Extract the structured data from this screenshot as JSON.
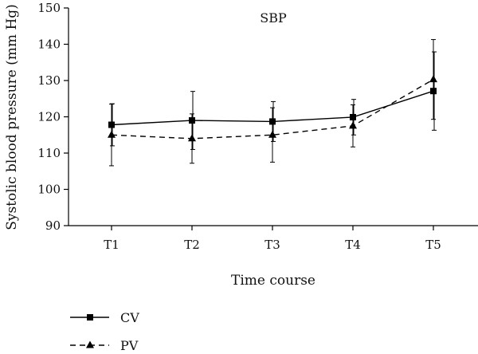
{
  "chart_data": {
    "type": "line",
    "title": "SBP",
    "xlabel": "Time course",
    "ylabel": "Systolic blood pressure (mm Hg)",
    "categories": [
      "T1",
      "T2",
      "T3",
      "T4",
      "T5"
    ],
    "ylim": [
      90,
      150
    ],
    "yticks": [
      90,
      100,
      110,
      120,
      130,
      140,
      150
    ],
    "grid": false,
    "legend_position": "bottom-left",
    "series": [
      {
        "name": "CV",
        "marker": "square",
        "line_style": "solid",
        "color": "#000000",
        "values": [
          117.8,
          119.0,
          118.7,
          119.9,
          127.1
        ],
        "error": [
          5.8,
          8.0,
          5.5,
          4.9,
          10.8
        ]
      },
      {
        "name": "PV",
        "marker": "triangle",
        "line_style": "dashed",
        "color": "#000000",
        "values": [
          115.0,
          114.0,
          115.0,
          117.5,
          130.3
        ],
        "error": [
          8.5,
          6.8,
          7.5,
          5.8,
          11.0
        ]
      }
    ]
  }
}
